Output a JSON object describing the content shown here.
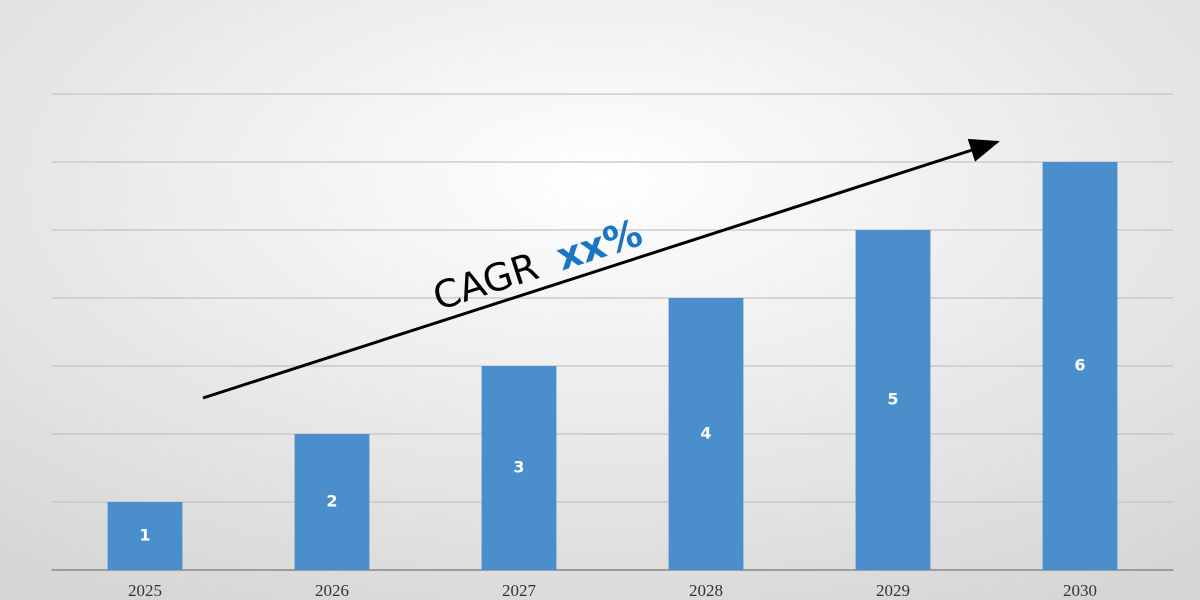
{
  "chart_data": {
    "type": "bar",
    "categories": [
      "2025",
      "2026",
      "2027",
      "2028",
      "2029",
      "2030"
    ],
    "values": [
      1,
      2,
      3,
      4,
      5,
      6
    ],
    "color": "#4a8ecb",
    "ylim": [
      0,
      7
    ],
    "yticks": [
      0,
      1,
      2,
      3,
      4,
      5,
      6,
      7
    ],
    "grid": true,
    "annotations": [
      "CAGR",
      "xx%"
    ]
  }
}
